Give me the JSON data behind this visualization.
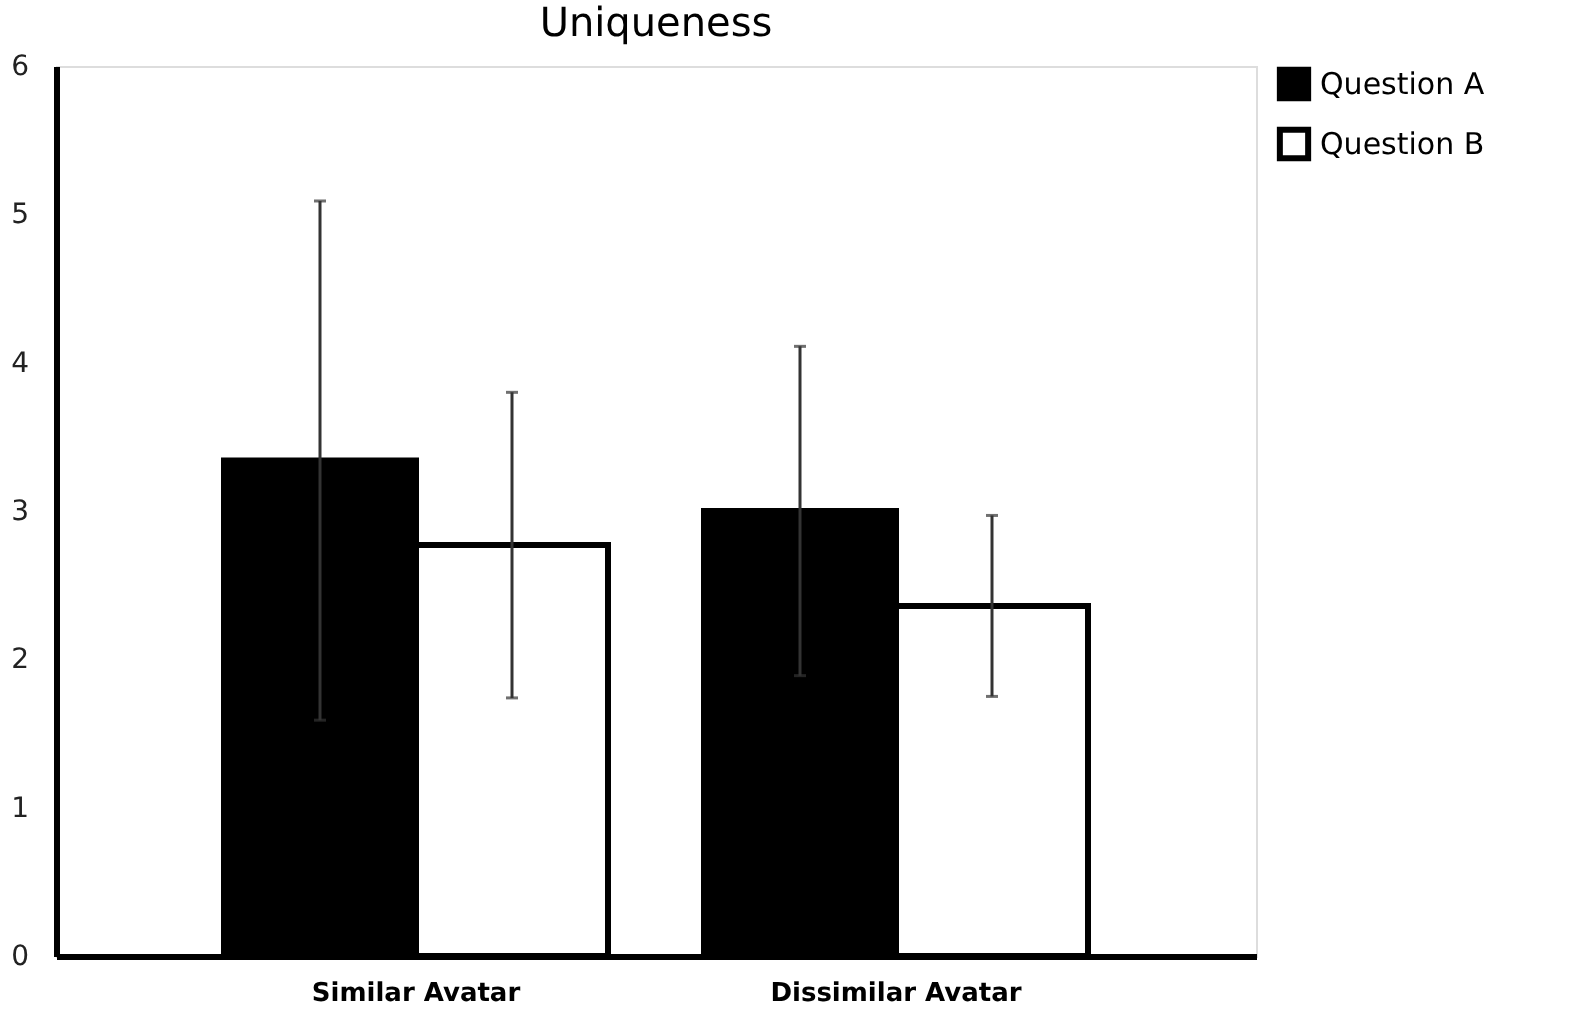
{
  "chart_data": {
    "type": "bar",
    "title": "Uniqueness",
    "categories": [
      "Similar Avatar",
      "Dissimilar Avatar"
    ],
    "series": [
      {
        "name": "Question A",
        "color": "#000000",
        "values": [
          3.34,
          3.0
        ],
        "errors": [
          1.75,
          1.11
        ]
      },
      {
        "name": "Question B",
        "color": "#ffffff",
        "values": [
          2.77,
          2.36
        ],
        "errors": [
          1.03,
          0.61
        ]
      }
    ],
    "ylim": [
      0,
      6
    ],
    "yticks": [
      0,
      1,
      2,
      3,
      4,
      5,
      6
    ],
    "grid": false,
    "legend": "right"
  }
}
